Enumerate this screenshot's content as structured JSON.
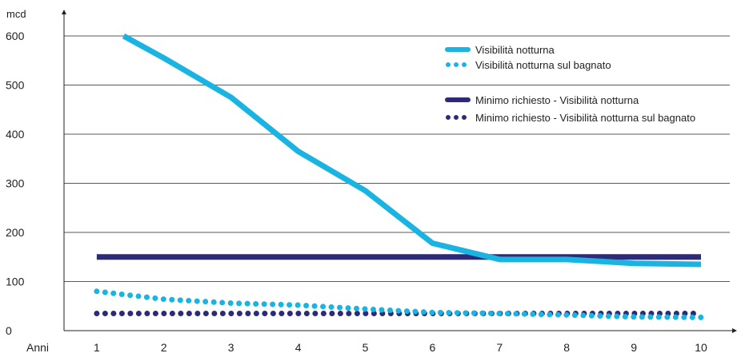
{
  "chart_data": {
    "type": "line",
    "y_unit_label": "mcd",
    "x_unit_label": "Anni",
    "x": [
      1,
      2,
      3,
      4,
      5,
      6,
      7,
      8,
      9,
      10
    ],
    "x_ticks": [
      "1",
      "2",
      "3",
      "4",
      "5",
      "6",
      "7",
      "8",
      "9",
      "10"
    ],
    "y_ticks": [
      "0",
      "100",
      "200",
      "300",
      "400",
      "500",
      "600"
    ],
    "ylim": [
      0,
      600
    ],
    "xlim": [
      0,
      10.5
    ],
    "grid": "horizontal",
    "legend_position": "top-right",
    "series": [
      {
        "name": "Visibilità notturna",
        "style": "solid",
        "color": "#1ab4e3",
        "x": [
          1.4,
          2,
          3,
          4,
          5,
          6,
          7,
          8,
          9,
          10
        ],
        "values": [
          600,
          555,
          475,
          365,
          285,
          178,
          145,
          145,
          137,
          135
        ]
      },
      {
        "name": "Visibilità notturna sul bagnato",
        "style": "dotted",
        "color": "#1ab4e3",
        "x": [
          1,
          2,
          3,
          4,
          5,
          6,
          7,
          8,
          9,
          10
        ],
        "values": [
          80,
          64,
          56,
          52,
          44,
          37,
          35,
          32,
          28,
          27
        ]
      },
      {
        "name": "Minimo richiesto - Visibilità notturna",
        "style": "solid",
        "color": "#2d2a78",
        "x": [
          1,
          10
        ],
        "values": [
          150,
          150
        ]
      },
      {
        "name": "Minimo richiesto - Visibilità notturna sul bagnato",
        "style": "dotted",
        "color": "#2d2a78",
        "x": [
          1,
          10
        ],
        "values": [
          35,
          35
        ]
      }
    ]
  }
}
